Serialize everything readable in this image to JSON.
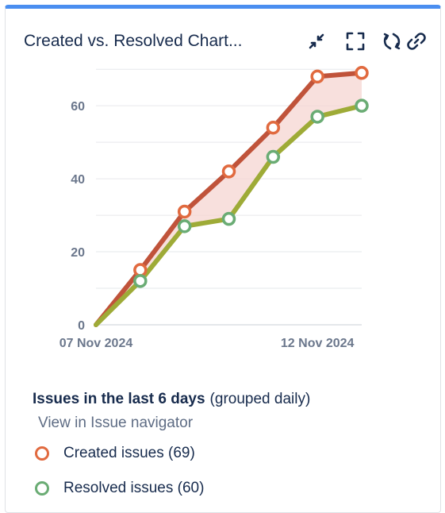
{
  "gadget": {
    "title": "Created vs. Resolved Chart...",
    "actions": [
      {
        "name": "minimize-icon"
      },
      {
        "name": "fullscreen-icon"
      },
      {
        "name": "refresh-icon"
      },
      {
        "name": "link-icon"
      }
    ]
  },
  "colors": {
    "accent_bar": "#4a8ef0",
    "created": "#c0533a",
    "created_marker": "#e16a3f",
    "resolved": "#9eab37",
    "resolved_marker": "#6aac74",
    "fill": "#f5d6d2"
  },
  "chart_data": {
    "type": "line",
    "x": [
      "07 Nov 2024",
      "08 Nov 2024",
      "09 Nov 2024",
      "10 Nov 2024",
      "11 Nov 2024",
      "12 Nov 2024",
      "13 Nov 2024"
    ],
    "x_tick_labels": [
      "07 Nov 2024",
      "12 Nov 2024"
    ],
    "y_ticks": [
      0,
      20,
      40,
      60
    ],
    "ylim": [
      0,
      72
    ],
    "grid": true,
    "series": [
      {
        "name": "Created issues",
        "values": [
          0,
          15,
          31,
          42,
          54,
          68,
          69
        ]
      },
      {
        "name": "Resolved issues",
        "values": [
          0,
          12,
          27,
          29,
          46,
          57,
          60
        ]
      }
    ]
  },
  "legend": {
    "title": "Issues in the last 6 days",
    "subtitle": "(grouped daily)",
    "link": "View in Issue navigator",
    "items": [
      {
        "label": "Created issues (69)"
      },
      {
        "label": "Resolved issues (60)"
      }
    ]
  }
}
